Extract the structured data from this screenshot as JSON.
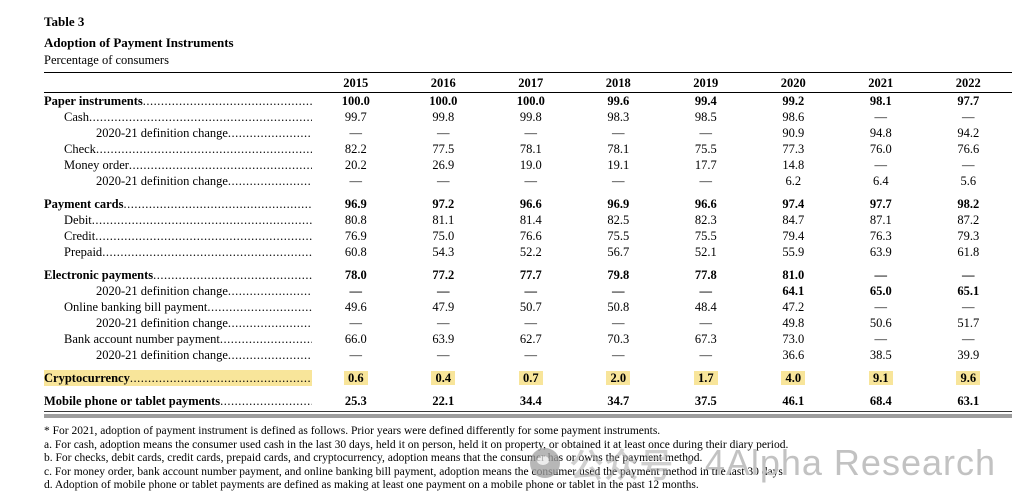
{
  "doc": {
    "table_label": "Table 3",
    "title": "Adoption of Payment Instruments",
    "caption": "Percentage of consumers"
  },
  "colors": {
    "highlight": "#f8e59a",
    "bottom_band": "#9e9e9e",
    "watermark_gray": "#c2c2c2"
  },
  "table": {
    "columns": [
      "2015",
      "2016",
      "2017",
      "2018",
      "2019",
      "2020",
      "2021",
      "2022"
    ],
    "rows": [
      {
        "label": "Paper instruments",
        "indent": 0,
        "bold": true,
        "values": [
          "100.0",
          "100.0",
          "100.0",
          "99.6",
          "99.4",
          "99.2",
          "98.1",
          "97.7"
        ]
      },
      {
        "label": "Cash",
        "indent": 1,
        "values": [
          "99.7",
          "99.8",
          "99.8",
          "98.3",
          "98.5",
          "98.6",
          "—",
          "—"
        ]
      },
      {
        "label": "2020-21 definition change",
        "indent": 2,
        "values": [
          "—",
          "—",
          "—",
          "—",
          "—",
          "90.9",
          "94.8",
          "94.2"
        ]
      },
      {
        "label": "Check",
        "indent": 1,
        "values": [
          "82.2",
          "77.5",
          "78.1",
          "78.1",
          "75.5",
          "77.3",
          "76.0",
          "76.6"
        ]
      },
      {
        "label": "Money order",
        "indent": 1,
        "values": [
          "20.2",
          "26.9",
          "19.0",
          "19.1",
          "17.7",
          "14.8",
          "—",
          "—"
        ]
      },
      {
        "label": "2020-21 definition change",
        "indent": 2,
        "values": [
          "—",
          "—",
          "—",
          "—",
          "—",
          "6.2",
          "6.4",
          "5.6"
        ]
      },
      {
        "label": "Payment cards",
        "indent": 0,
        "bold": true,
        "gap": true,
        "values": [
          "96.9",
          "97.2",
          "96.6",
          "96.9",
          "96.6",
          "97.4",
          "97.7",
          "98.2"
        ]
      },
      {
        "label": "Debit",
        "indent": 1,
        "values": [
          "80.8",
          "81.1",
          "81.4",
          "82.5",
          "82.3",
          "84.7",
          "87.1",
          "87.2"
        ]
      },
      {
        "label": "Credit",
        "indent": 1,
        "values": [
          "76.9",
          "75.0",
          "76.6",
          "75.5",
          "75.5",
          "79.4",
          "76.3",
          "79.3"
        ]
      },
      {
        "label": "Prepaid",
        "indent": 1,
        "values": [
          "60.8",
          "54.3",
          "52.2",
          "56.7",
          "52.1",
          "55.9",
          "63.9",
          "61.8"
        ]
      },
      {
        "label": "Electronic payments",
        "indent": 0,
        "bold": true,
        "gap": true,
        "values": [
          "78.0",
          "77.2",
          "77.7",
          "79.8",
          "77.8",
          "81.0",
          "—",
          "—"
        ]
      },
      {
        "label": "2020-21 definition change",
        "indent": 2,
        "values_bold": true,
        "values": [
          "—",
          "—",
          "—",
          "—",
          "—",
          "64.1",
          "65.0",
          "65.1"
        ]
      },
      {
        "label": "Online banking bill payment",
        "indent": 1,
        "values": [
          "49.6",
          "47.9",
          "50.7",
          "50.8",
          "48.4",
          "47.2",
          "—",
          "—"
        ]
      },
      {
        "label": "2020-21 definition change",
        "indent": 2,
        "values": [
          "—",
          "—",
          "—",
          "—",
          "—",
          "49.8",
          "50.6",
          "51.7"
        ]
      },
      {
        "label": "Bank account number payment",
        "indent": 1,
        "values": [
          "66.0",
          "63.9",
          "62.7",
          "70.3",
          "67.3",
          "73.0",
          "—",
          "—"
        ]
      },
      {
        "label": "2020-21 definition change",
        "indent": 2,
        "values": [
          "—",
          "—",
          "—",
          "—",
          "—",
          "36.6",
          "38.5",
          "39.9"
        ]
      },
      {
        "label": "Cryptocurrency",
        "indent": 0,
        "bold": true,
        "gap": true,
        "highlight": true,
        "values": [
          "0.6",
          "0.4",
          "0.7",
          "2.0",
          "1.7",
          "4.0",
          "9.1",
          "9.6"
        ]
      },
      {
        "label": "Mobile phone or tablet payments",
        "indent": 0,
        "bold": true,
        "gap": true,
        "values": [
          "25.3",
          "22.1",
          "34.4",
          "34.7",
          "37.5",
          "46.1",
          "68.4",
          "63.1"
        ]
      }
    ]
  },
  "footnotes": [
    "* For 2021, adoption of payment instrument is defined as follows. Prior years were defined differently for some payment instruments.",
    "a. For cash, adoption means the consumer used cash in the last 30 days, held it on person, held it on property, or obtained it at least once during their diary period.",
    "b. For checks, debit cards, credit cards, prepaid cards, and cryptocurrency, adoption means that the consumer has or owns the payment method.",
    "c. For money order, bank account number payment, and online banking bill payment, adoption means the consumer used the payment method in the last 30 days.",
    "d. Adoption of mobile phone or tablet payments are defined as making at least one payment on a mobile phone or tablet in the past 12 months."
  ],
  "watermark": {
    "icon": "official-account-logo",
    "cn_text": "公众号",
    "separator": "·",
    "brand": "4Alpha Research"
  }
}
